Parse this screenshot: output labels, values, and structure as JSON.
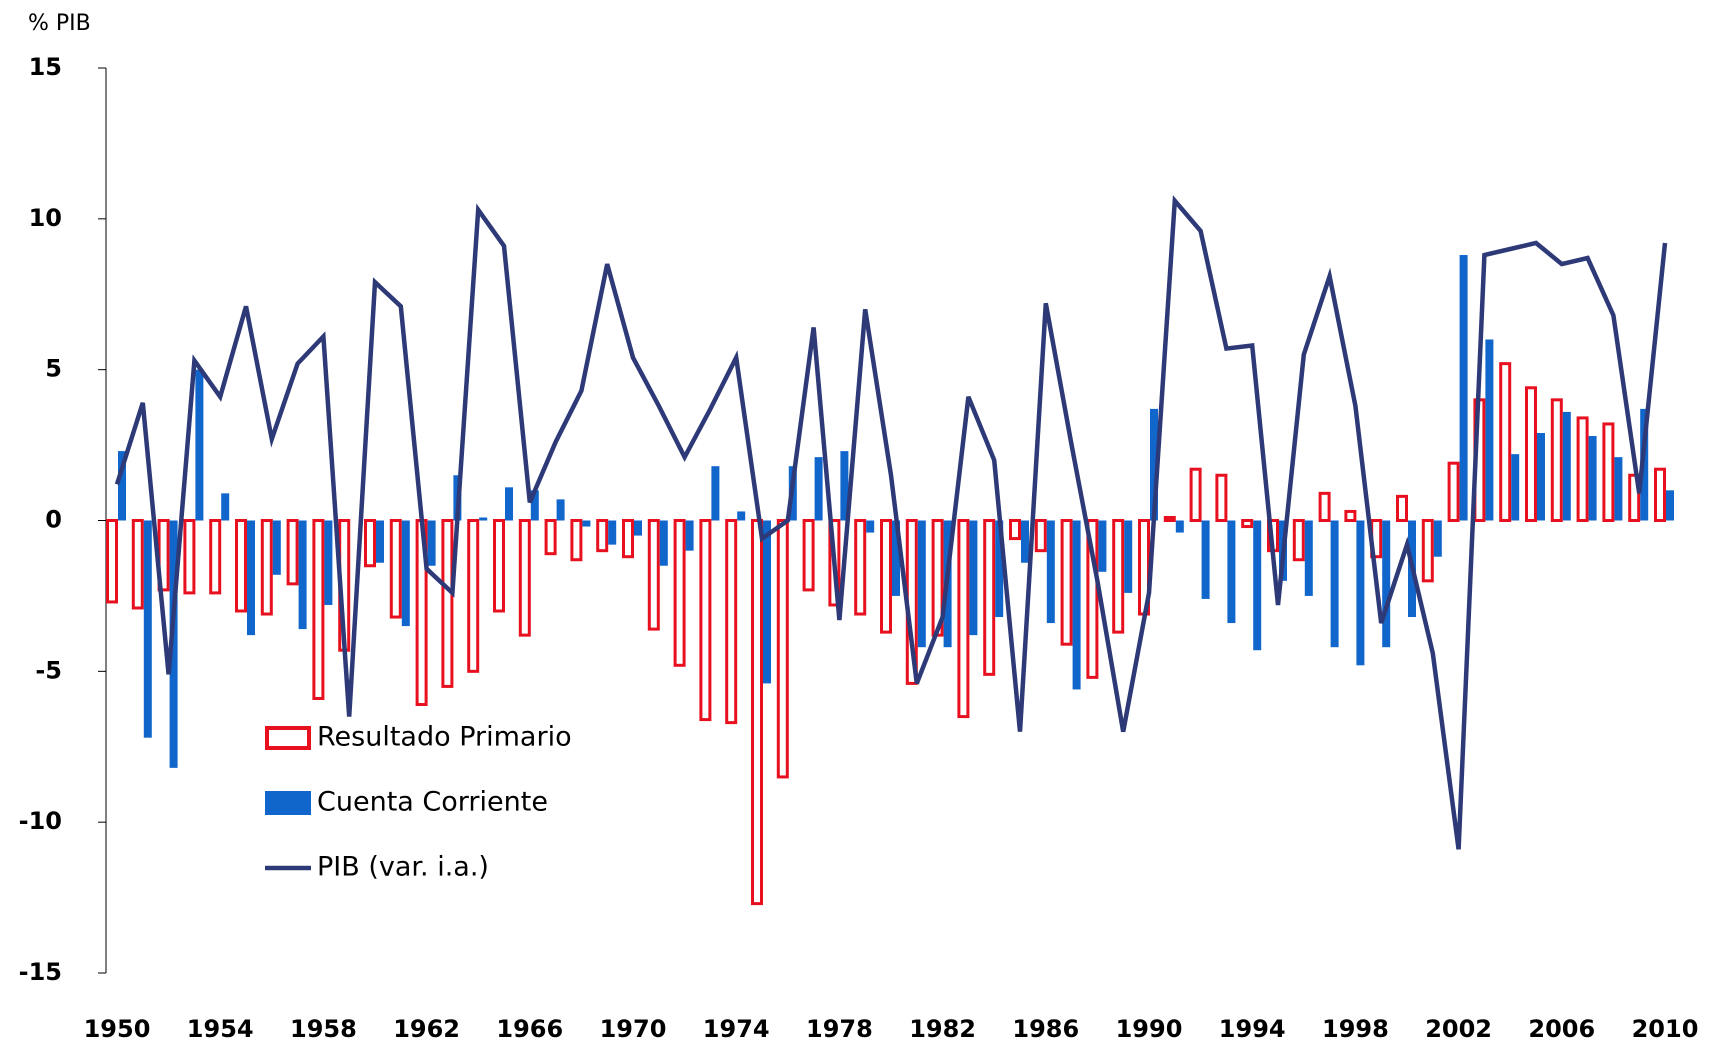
{
  "chart_data": {
    "type": "bar",
    "y_label": "% PIB",
    "categories": [
      "1950",
      null,
      null,
      null,
      "1954",
      null,
      null,
      null,
      "1958",
      null,
      null,
      null,
      "1962",
      null,
      null,
      null,
      "1966",
      null,
      null,
      null,
      "1970",
      null,
      null,
      null,
      "1974",
      null,
      null,
      null,
      "1978",
      null,
      null,
      null,
      "1982",
      null,
      null,
      null,
      "1986",
      null,
      null,
      null,
      "1990",
      null,
      null,
      null,
      "1994",
      null,
      null,
      null,
      "1998",
      null,
      null,
      null,
      "2002",
      null,
      null,
      null,
      "2006",
      null,
      null,
      null,
      "2010"
    ],
    "series": [
      {
        "name": "Resultado Primario",
        "type": "bar",
        "style": "outline",
        "color": "#e8101e",
        "values": [
          -2.7,
          -2.9,
          -2.3,
          -2.4,
          -2.4,
          -3.0,
          -3.1,
          -2.1,
          -5.9,
          -4.3,
          -1.5,
          -3.2,
          -6.1,
          -5.5,
          -5.0,
          -3.0,
          -3.8,
          -1.1,
          -1.3,
          -1.0,
          -1.2,
          -3.6,
          -4.8,
          -6.6,
          -6.7,
          -12.7,
          -8.5,
          -2.3,
          -2.8,
          -3.1,
          -3.7,
          -5.4,
          -3.8,
          -6.5,
          -5.1,
          -0.6,
          -1.0,
          -4.1,
          -5.2,
          -3.7,
          -3.1,
          0.1,
          1.7,
          1.5,
          -0.2,
          -1.0,
          -1.3,
          0.9,
          0.3,
          -1.2,
          0.8,
          -2.0,
          1.9,
          4.0,
          5.2,
          4.4,
          4.0,
          3.4,
          3.2,
          1.5,
          1.7
        ]
      },
      {
        "name": "Cuenta Corriente",
        "type": "bar",
        "style": "solid",
        "color": "#1166cc",
        "values": [
          2.3,
          -7.2,
          -8.2,
          5.0,
          0.9,
          -3.8,
          -1.8,
          -3.6,
          -2.8,
          0.0,
          -1.4,
          -3.5,
          -1.5,
          1.5,
          0.1,
          1.1,
          1.0,
          0.7,
          -0.2,
          -0.8,
          -0.5,
          -1.5,
          -1.0,
          1.8,
          0.3,
          -5.4,
          1.8,
          2.1,
          2.3,
          -0.4,
          -2.5,
          -4.2,
          -4.2,
          -3.8,
          -3.2,
          -1.4,
          -3.4,
          -5.6,
          -1.7,
          -2.4,
          3.7,
          -0.4,
          -2.6,
          -3.4,
          -4.3,
          -2.0,
          -2.5,
          -4.2,
          -4.8,
          -4.2,
          -3.2,
          -1.2,
          8.8,
          6.0,
          2.2,
          2.9,
          3.6,
          2.8,
          2.1,
          3.7,
          1.0
        ]
      },
      {
        "name": "PIB (var. i.a.)",
        "type": "line",
        "color": "#2e3a78",
        "values": [
          1.2,
          3.9,
          -5.1,
          5.3,
          4.1,
          7.1,
          2.7,
          5.2,
          6.1,
          -6.5,
          7.9,
          7.1,
          -1.6,
          -2.4,
          10.3,
          9.1,
          0.6,
          2.6,
          4.3,
          8.5,
          5.4,
          3.8,
          2.1,
          3.7,
          5.4,
          -0.6,
          0.0,
          6.4,
          -3.3,
          7.0,
          1.5,
          -5.4,
          -3.2,
          4.1,
          2.0,
          -7.0,
          7.2,
          2.5,
          -2.0,
          -7.0,
          -2.4,
          10.6,
          9.6,
          5.7,
          5.8,
          -2.8,
          5.5,
          8.1,
          3.8,
          -3.4,
          -0.8,
          -4.4,
          -10.9,
          8.8,
          9.0,
          9.2,
          8.5,
          8.7,
          6.8,
          0.9,
          9.2
        ]
      }
    ],
    "ylim": [
      -15,
      15
    ],
    "yticks": [
      -15,
      -10,
      -5,
      0,
      5,
      10,
      15
    ],
    "grid": false,
    "legend": "lower-left"
  }
}
